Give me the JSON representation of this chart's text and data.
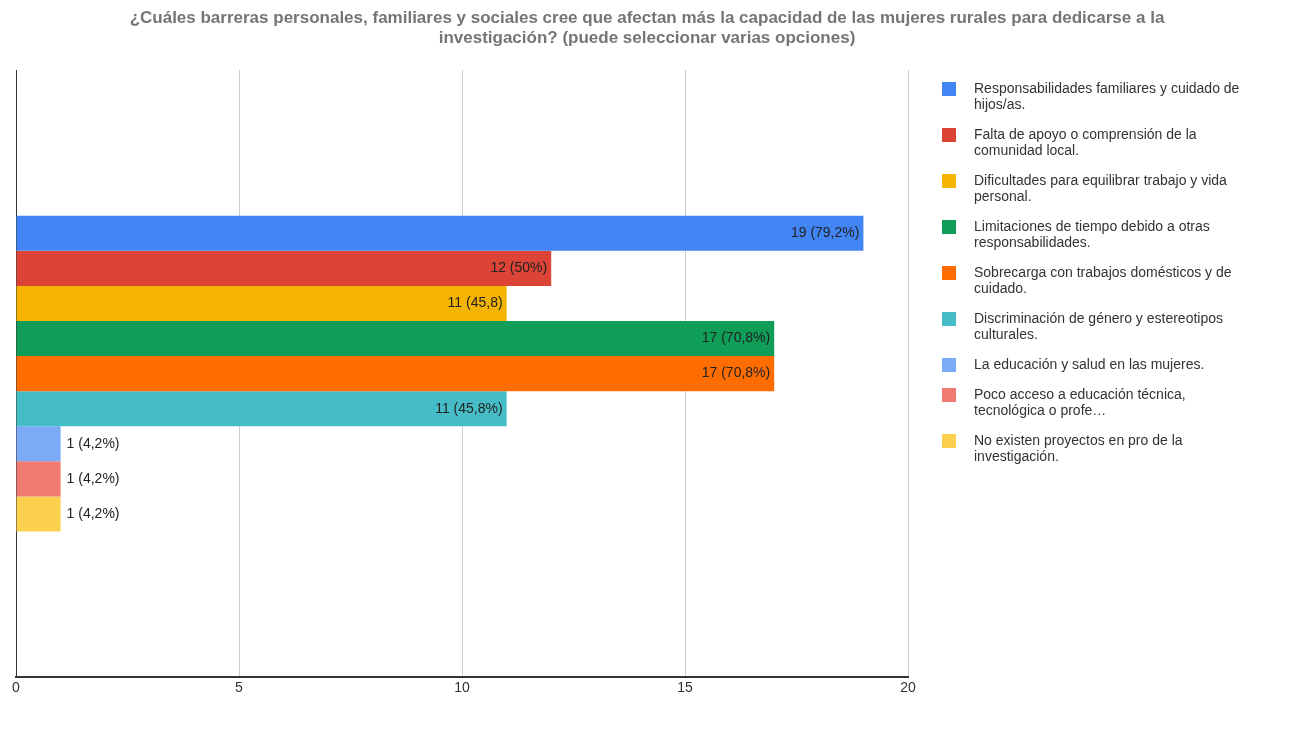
{
  "chart_data": {
    "type": "bar",
    "orientation": "horizontal",
    "title": "¿Cuáles barreras personales, familiares y sociales cree que afectan más la capacidad de las mujeres rurales para dedicarse a la investigación?   (puede seleccionar varias opciones)",
    "categories": [
      null
    ],
    "series": [
      {
        "name": "Responsabilidades familiares y cuidado de hijos/as.",
        "color": "#4285f4",
        "values": [
          19
        ],
        "value_labels": [
          "19 (79,2%)"
        ]
      },
      {
        "name": "Falta de apoyo o comprensión de la comunidad local.",
        "color": "#db4437",
        "values": [
          12
        ],
        "value_labels": [
          "12 (50%)"
        ]
      },
      {
        "name": "Dificultades para equilibrar trabajo y vida personal.",
        "color": "#f4b400",
        "values": [
          11
        ],
        "value_labels": [
          "11 (45,8)"
        ]
      },
      {
        "name": "Limitaciones de tiempo debido a otras responsabilidades.",
        "color": "#0f9d58",
        "values": [
          17
        ],
        "value_labels": [
          "17 (70,8%)"
        ]
      },
      {
        "name": "Sobrecarga con trabajos domésticos y de cuidado.",
        "color": "#ff6d01",
        "values": [
          17
        ],
        "value_labels": [
          "17 (70,8%)"
        ]
      },
      {
        "name": "Discriminación de género y estereotipos culturales.",
        "color": "#46bdc6",
        "values": [
          11
        ],
        "value_labels": [
          "11 (45,8%)"
        ]
      },
      {
        "name": "La educación y salud en las mujeres.",
        "color": "#7baaf7",
        "values": [
          1
        ],
        "value_labels": [
          "1 (4,2%)"
        ]
      },
      {
        "name": "Poco acceso a educación técnica, tecnológica o profe…",
        "color": "#f07b72",
        "values": [
          1
        ],
        "value_labels": [
          "1 (4,2%)"
        ]
      },
      {
        "name": "No existen proyectos en pro de la investigación.",
        "color": "#fcd04f",
        "values": [
          1
        ],
        "value_labels": [
          "1 (4,2%)"
        ]
      }
    ],
    "xlim": [
      0,
      20
    ],
    "xticks": [
      0,
      5,
      10,
      15,
      20
    ],
    "grid": "x",
    "legend": "right"
  }
}
